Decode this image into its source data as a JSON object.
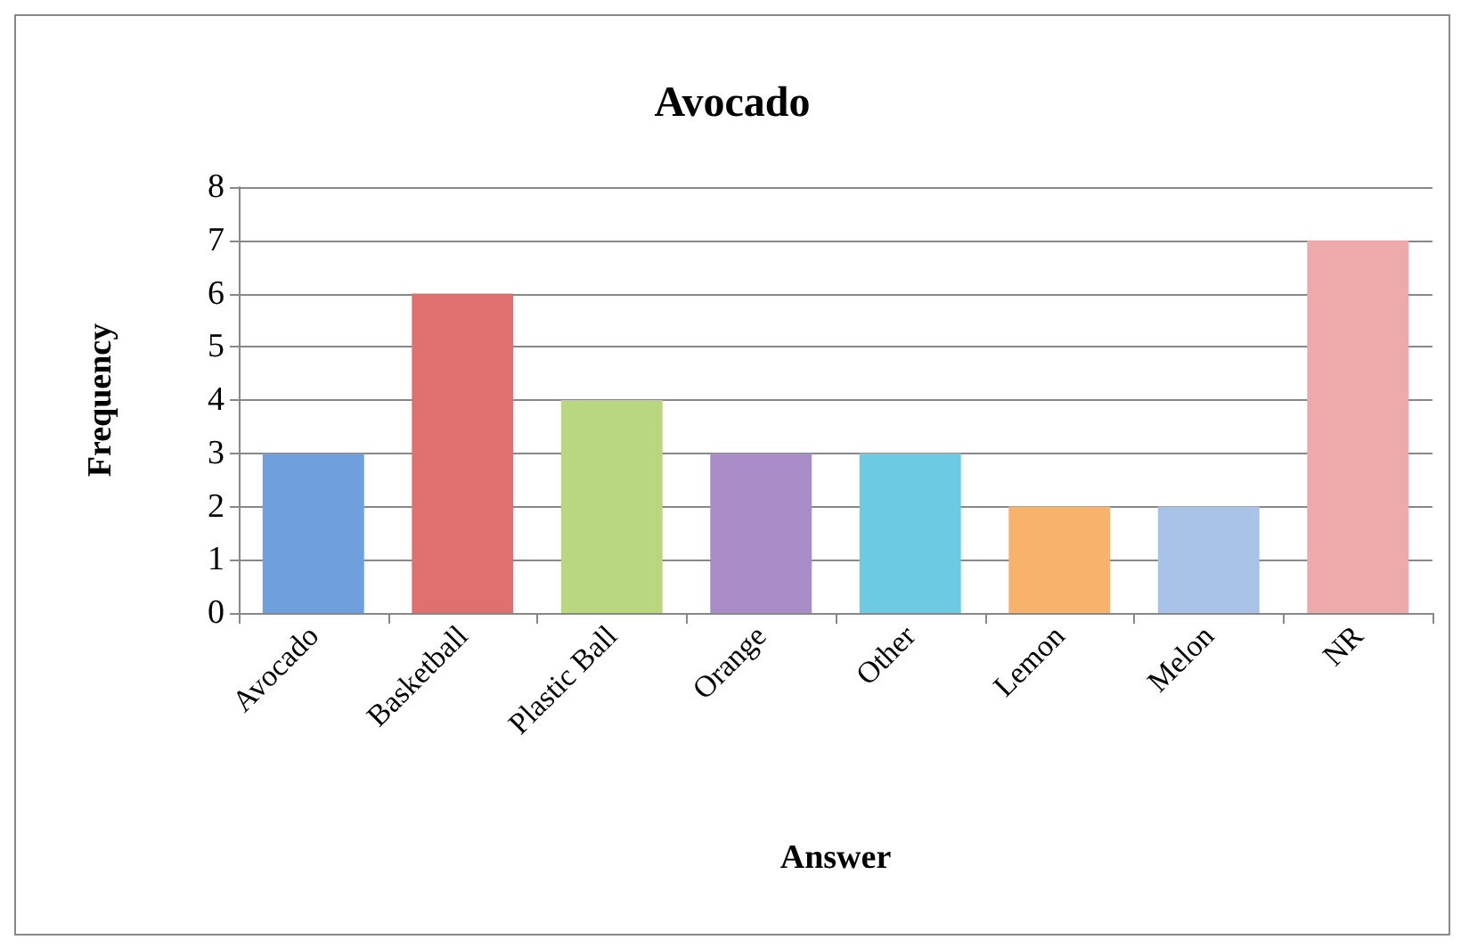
{
  "chart_data": {
    "type": "bar",
    "title": "Avocado",
    "xlabel": "Answer",
    "ylabel": "Frequency",
    "categories": [
      "Avocado",
      "Basketball",
      "Plastic Ball",
      "Orange",
      "Other",
      "Lemon",
      "Melon",
      "NR"
    ],
    "values": [
      3,
      6,
      4,
      3,
      3,
      2,
      2,
      7
    ],
    "colors": [
      "#6f9fdc",
      "#e07070",
      "#b8d77e",
      "#a88cc8",
      "#6ccbe2",
      "#f8b26c",
      "#a9c2e8",
      "#eeaaaa"
    ],
    "ylim": [
      0,
      8
    ],
    "yticks": [
      0,
      1,
      2,
      3,
      4,
      5,
      6,
      7,
      8
    ],
    "grid": "y"
  }
}
